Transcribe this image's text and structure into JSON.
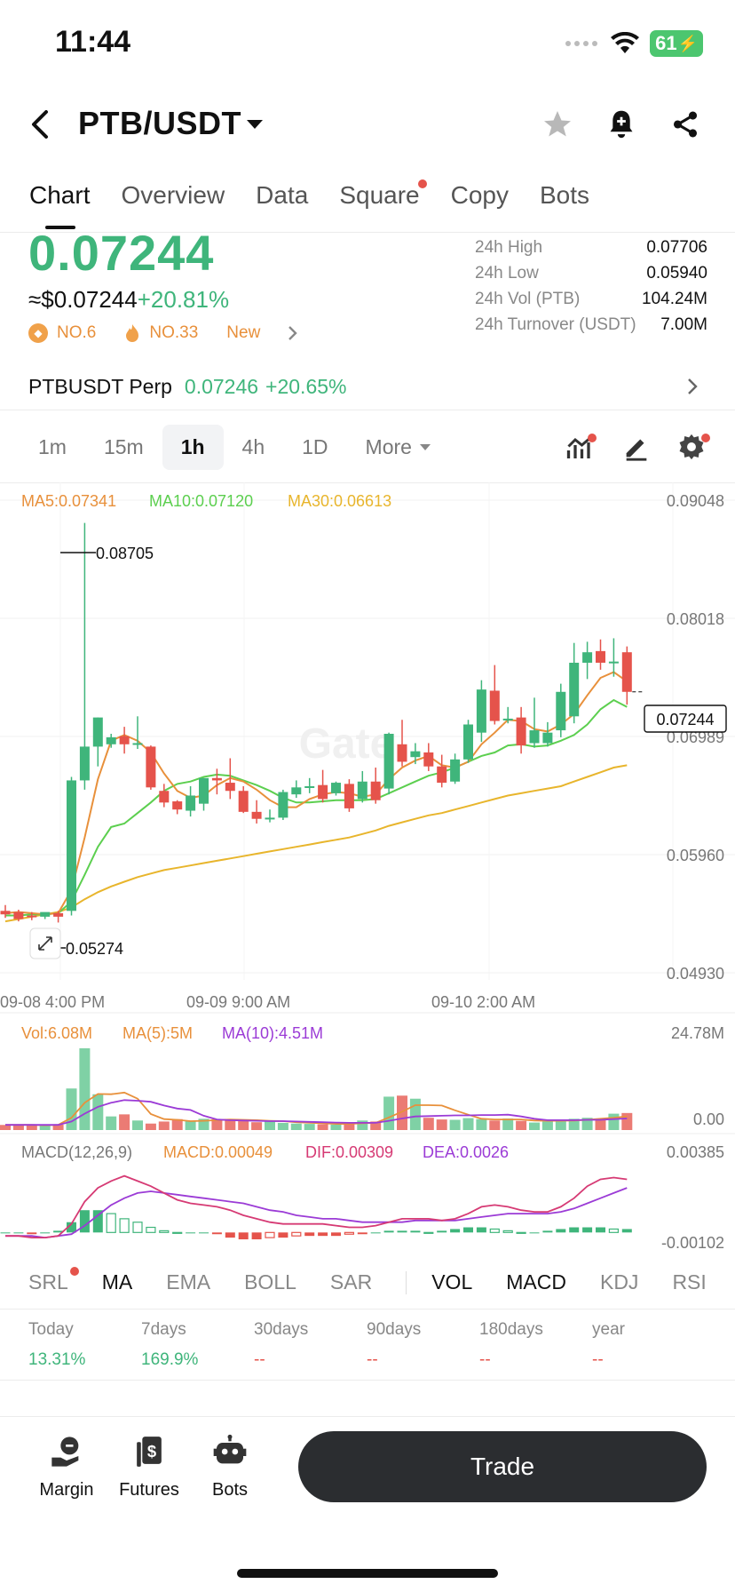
{
  "status_bar": {
    "time": "11:44",
    "battery": "61"
  },
  "header": {
    "pair": "PTB/USDT"
  },
  "tabs": [
    {
      "label": "Chart",
      "active": true
    },
    {
      "label": "Overview"
    },
    {
      "label": "Data"
    },
    {
      "label": "Square",
      "dot": true
    },
    {
      "label": "Copy"
    },
    {
      "label": "Bots"
    }
  ],
  "price": {
    "last": "0.07244",
    "usd": "≈$0.07244",
    "change": "+20.81%",
    "rank1": "NO.6",
    "rank2": "NO.33",
    "new_label": "New"
  },
  "stats": [
    {
      "label": "24h High",
      "value": "0.07706"
    },
    {
      "label": "24h Low",
      "value": "0.05940"
    },
    {
      "label": "24h Vol (PTB)",
      "value": "104.24M"
    },
    {
      "label": "24h Turnover (USDT)",
      "value": "7.00M"
    }
  ],
  "perp": {
    "name": "PTBUSDT Perp",
    "price": "0.07246",
    "change": "+20.65%"
  },
  "intervals": [
    "1m",
    "15m",
    "1h",
    "4h",
    "1D",
    "More"
  ],
  "active_interval": "1h",
  "colors": {
    "up": "#3fb57b",
    "down": "#e5534b",
    "ma5": "#e8903b",
    "ma10": "#5ccf4f",
    "ma30": "#e8b52c",
    "ma_vol10": "#9b3bd6",
    "dif": "#d63a74",
    "dea": "#9b3bd6"
  },
  "chart_data": {
    "type": "candlestick",
    "ma_legend": {
      "ma5": "MA5:0.07341",
      "ma10": "MA10:0.07120",
      "ma30": "MA30:0.06613"
    },
    "y_ticks": [
      "0.09048",
      "0.08018",
      "0.06989",
      "0.05960",
      "0.04930"
    ],
    "y_range": [
      0.0493,
      0.09048
    ],
    "x_ticks": [
      "09-08 4:00 PM",
      "09-09 9:00 AM",
      "09-10 2:00 AM"
    ],
    "high_label": "0.08705",
    "low_label": "0.05274",
    "last_price_label": "0.07244",
    "watermark": "Gate",
    "candles": [
      [
        0.0537,
        0.0542,
        0.0534,
        0.0531
      ],
      [
        0.0536,
        0.0538,
        0.053,
        0.0528
      ],
      [
        0.0533,
        0.0536,
        0.0532,
        0.0529
      ],
      [
        0.0532,
        0.0534,
        0.0536,
        0.053
      ],
      [
        0.0535,
        0.0537,
        0.0532,
        0.0527
      ],
      [
        0.0537,
        0.0652,
        0.0649,
        0.0533
      ],
      [
        0.0649,
        0.087,
        0.0678,
        0.0641
      ],
      [
        0.0678,
        0.0703,
        0.0703,
        0.0661
      ],
      [
        0.068,
        0.0689,
        0.0686,
        0.0677
      ],
      [
        0.0687,
        0.0695,
        0.068,
        0.0672
      ],
      [
        0.068,
        0.0704,
        0.0681,
        0.0676
      ],
      [
        0.0678,
        0.0679,
        0.0643,
        0.0641
      ],
      [
        0.064,
        0.0646,
        0.063,
        0.0626
      ],
      [
        0.0631,
        0.0632,
        0.0624,
        0.062
      ],
      [
        0.0623,
        0.0644,
        0.0636,
        0.0618
      ],
      [
        0.0629,
        0.0651,
        0.0651,
        0.0623
      ],
      [
        0.0651,
        0.0659,
        0.0649,
        0.0637
      ],
      [
        0.0647,
        0.0668,
        0.064,
        0.0633
      ],
      [
        0.064,
        0.0644,
        0.0622,
        0.0621
      ],
      [
        0.0622,
        0.0632,
        0.0616,
        0.0612
      ],
      [
        0.0616,
        0.0624,
        0.0617,
        0.0613
      ],
      [
        0.0617,
        0.0641,
        0.0639,
        0.0615
      ],
      [
        0.0637,
        0.0649,
        0.0643,
        0.0634
      ],
      [
        0.0643,
        0.0651,
        0.0644,
        0.0638
      ],
      [
        0.0645,
        0.0658,
        0.0633,
        0.063
      ],
      [
        0.0638,
        0.0648,
        0.0647,
        0.0636
      ],
      [
        0.0646,
        0.065,
        0.0625,
        0.0622
      ],
      [
        0.0633,
        0.0657,
        0.0648,
        0.063
      ],
      [
        0.0648,
        0.066,
        0.0632,
        0.0629
      ],
      [
        0.0642,
        0.069,
        0.0689,
        0.0637
      ],
      [
        0.068,
        0.0701,
        0.0665,
        0.0661
      ],
      [
        0.0669,
        0.0681,
        0.0674,
        0.0663
      ],
      [
        0.0673,
        0.0681,
        0.0661,
        0.0657
      ],
      [
        0.0661,
        0.0671,
        0.0647,
        0.0643
      ],
      [
        0.0648,
        0.0672,
        0.0667,
        0.0646
      ],
      [
        0.0667,
        0.0701,
        0.0697,
        0.0664
      ],
      [
        0.069,
        0.0735,
        0.0727,
        0.0682
      ],
      [
        0.0726,
        0.0748,
        0.07,
        0.0697
      ],
      [
        0.0702,
        0.0712,
        0.0702,
        0.0698
      ],
      [
        0.0703,
        0.0712,
        0.0679,
        0.0672
      ],
      [
        0.0681,
        0.072,
        0.0692,
        0.0677
      ],
      [
        0.0681,
        0.0699,
        0.069,
        0.0678
      ],
      [
        0.0692,
        0.0732,
        0.0725,
        0.0686
      ],
      [
        0.0704,
        0.0767,
        0.075,
        0.0698
      ],
      [
        0.075,
        0.0768,
        0.0759,
        0.0736
      ],
      [
        0.076,
        0.077,
        0.075,
        0.0744
      ],
      [
        0.075,
        0.0771,
        0.0751,
        0.0738
      ],
      [
        0.0759,
        0.0764,
        0.0725,
        0.0714
      ]
    ],
    "ma5": [
      0.0535,
      0.0536,
      0.0535,
      0.0534,
      0.0535,
      0.0555,
      0.06,
      0.065,
      0.0683,
      0.0688,
      0.0683,
      0.0673,
      0.0655,
      0.064,
      0.0634,
      0.0636,
      0.0645,
      0.0651,
      0.0648,
      0.0641,
      0.0632,
      0.0626,
      0.0626,
      0.0633,
      0.0637,
      0.0639,
      0.0638,
      0.0635,
      0.0637,
      0.065,
      0.066,
      0.0666,
      0.067,
      0.0662,
      0.066,
      0.0665,
      0.068,
      0.069,
      0.0701,
      0.07,
      0.0693,
      0.0691,
      0.0697,
      0.0706,
      0.0722,
      0.0737,
      0.0742,
      0.0734
    ],
    "ma10": [
      0.0533,
      0.0533,
      0.0534,
      0.0534,
      0.0535,
      0.0545,
      0.0568,
      0.0592,
      0.0609,
      0.0612,
      0.0621,
      0.063,
      0.064,
      0.0646,
      0.0648,
      0.0652,
      0.0654,
      0.0653,
      0.0649,
      0.0645,
      0.064,
      0.0634,
      0.063,
      0.063,
      0.0631,
      0.0632,
      0.0632,
      0.0632,
      0.0633,
      0.0638,
      0.0643,
      0.0648,
      0.0653,
      0.0656,
      0.066,
      0.0665,
      0.067,
      0.0673,
      0.0679,
      0.068,
      0.0678,
      0.0679,
      0.0683,
      0.0688,
      0.0697,
      0.071,
      0.0718,
      0.0712
    ],
    "ma30": [
      0.0528,
      0.053,
      0.0532,
      0.0534,
      0.0536,
      0.054,
      0.0547,
      0.0553,
      0.0558,
      0.0562,
      0.0566,
      0.0569,
      0.0572,
      0.0574,
      0.0576,
      0.0578,
      0.058,
      0.0582,
      0.0584,
      0.0586,
      0.0588,
      0.059,
      0.0592,
      0.0594,
      0.0596,
      0.0598,
      0.06,
      0.0603,
      0.0606,
      0.061,
      0.0613,
      0.0616,
      0.0619,
      0.0621,
      0.0624,
      0.0627,
      0.063,
      0.0633,
      0.0636,
      0.0638,
      0.064,
      0.0642,
      0.0644,
      0.0648,
      0.0652,
      0.0656,
      0.066,
      0.0662
    ],
    "volume": {
      "legend_vol": "Vol:6.08M",
      "legend_ma5": "MA(5):5M",
      "legend_ma10": "MA(10):4.51M",
      "y_ticks": [
        "24.78M",
        "0.00"
      ],
      "y_max": 24.78,
      "values": [
        1.5,
        1.5,
        1.4,
        1.3,
        1.6,
        12.2,
        24.0,
        10.5,
        4.0,
        4.6,
        2.8,
        1.9,
        2.5,
        3.2,
        2.6,
        3.3,
        3.2,
        3.0,
        2.6,
        2.3,
        2.6,
        2.1,
        1.9,
        1.8,
        1.7,
        1.6,
        1.9,
        2.8,
        2.5,
        9.8,
        10.1,
        9.2,
        3.6,
        3.1,
        3.0,
        3.5,
        3.2,
        2.8,
        3.4,
        2.7,
        2.2,
        2.5,
        3.0,
        3.3,
        3.6,
        3.4,
        4.8,
        5.0
      ],
      "ma5": [
        1.5,
        1.5,
        1.5,
        1.4,
        1.5,
        3.6,
        8.0,
        10.6,
        10.5,
        11.0,
        9.2,
        4.7,
        3.2,
        3.0,
        2.6,
        2.7,
        2.9,
        3.1,
        3.0,
        2.9,
        2.7,
        2.6,
        2.3,
        2.1,
        2.0,
        1.8,
        1.8,
        2.0,
        2.1,
        3.7,
        5.4,
        7.3,
        7.3,
        7.2,
        5.8,
        4.5,
        3.3,
        3.1,
        3.1,
        3.1,
        2.8,
        2.7,
        2.7,
        2.8,
        3.0,
        3.3,
        3.6,
        4.0
      ],
      "ma10": [
        1.5,
        1.5,
        1.5,
        1.5,
        1.5,
        2.5,
        4.8,
        6.8,
        8.0,
        8.8,
        8.6,
        8.3,
        7.2,
        6.3,
        5.9,
        4.2,
        3.1,
        2.9,
        2.8,
        2.7,
        2.6,
        2.6,
        2.5,
        2.4,
        2.3,
        2.2,
        2.1,
        2.1,
        2.1,
        2.7,
        3.4,
        4.0,
        4.1,
        4.2,
        4.3,
        4.3,
        4.4,
        4.4,
        4.5,
        4.0,
        3.3,
        2.9,
        2.9,
        2.9,
        3.0,
        3.0,
        3.2,
        3.4
      ]
    },
    "macd": {
      "legend_name": "MACD(12,26,9)",
      "legend_macd": "MACD:0.00049",
      "legend_dif": "DIF:0.00309",
      "legend_dea": "DEA:0.0026",
      "y_ticks": [
        "0.00385",
        "-0.00102"
      ],
      "y_range": [
        -0.00102,
        0.00385
      ],
      "hist": [
        0.0,
        0.0,
        -0.0001,
        0.0,
        0.0001,
        0.0006,
        0.0013,
        0.0013,
        0.0011,
        0.0008,
        0.0006,
        0.0003,
        0.0001,
        0.0,
        0.0,
        0.0,
        -0.0001,
        -0.0003,
        -0.0004,
        -0.0004,
        -0.0003,
        -0.0003,
        -0.0002,
        -0.0002,
        -0.0002,
        -0.0002,
        -0.0001,
        -0.0001,
        0.0,
        0.0001,
        0.0001,
        0.0001,
        0.0,
        0.0001,
        0.0002,
        0.0003,
        0.0003,
        0.0002,
        0.0001,
        0.0,
        0.0,
        0.0001,
        0.0002,
        0.0003,
        0.0003,
        0.0003,
        0.0002,
        0.0002
      ],
      "dif": [
        -0.0002,
        -0.0002,
        -0.0003,
        -0.0003,
        -0.0002,
        0.0005,
        0.0018,
        0.0026,
        0.003,
        0.0033,
        0.003,
        0.0027,
        0.0023,
        0.0019,
        0.0017,
        0.0016,
        0.0015,
        0.0013,
        0.001,
        0.0008,
        0.0006,
        0.0005,
        0.0005,
        0.0005,
        0.0005,
        0.0004,
        0.0003,
        0.0003,
        0.0004,
        0.0006,
        0.0008,
        0.0008,
        0.0008,
        0.0007,
        0.0008,
        0.0011,
        0.0015,
        0.0016,
        0.0015,
        0.0013,
        0.0012,
        0.0012,
        0.0015,
        0.002,
        0.0027,
        0.0031,
        0.0032,
        0.0031
      ],
      "dea": [
        -0.0002,
        -0.0002,
        -0.0002,
        -0.0003,
        -0.0002,
        -0.0001,
        0.0004,
        0.001,
        0.0016,
        0.002,
        0.0023,
        0.0024,
        0.0023,
        0.0022,
        0.0021,
        0.002,
        0.0019,
        0.0018,
        0.0017,
        0.0015,
        0.0013,
        0.0012,
        0.001,
        0.0009,
        0.0008,
        0.0008,
        0.0007,
        0.0006,
        0.0006,
        0.0006,
        0.0006,
        0.0007,
        0.0007,
        0.0007,
        0.0007,
        0.0008,
        0.0009,
        0.001,
        0.0011,
        0.0011,
        0.0011,
        0.0011,
        0.0012,
        0.0014,
        0.0017,
        0.002,
        0.0023,
        0.0026
      ]
    }
  },
  "indicators": [
    {
      "label": "SRL",
      "dot": true
    },
    {
      "label": "MA",
      "on": true
    },
    {
      "label": "EMA"
    },
    {
      "label": "BOLL"
    },
    {
      "label": "SAR"
    },
    {
      "label": "VOL",
      "on": true
    },
    {
      "label": "MACD",
      "on": true
    },
    {
      "label": "KDJ"
    },
    {
      "label": "RSI"
    }
  ],
  "performance": [
    {
      "label": "Today",
      "value": "13.31%",
      "color": "green"
    },
    {
      "label": "7days",
      "value": "169.9%",
      "color": "green"
    },
    {
      "label": "30days",
      "value": "--",
      "color": "red"
    },
    {
      "label": "90days",
      "value": "--",
      "color": "red"
    },
    {
      "label": "180days",
      "value": "--",
      "color": "red"
    },
    {
      "label": "year",
      "value": "--",
      "color": "red"
    }
  ],
  "bottom_bar": {
    "margin": "Margin",
    "futures": "Futures",
    "bots": "Bots",
    "trade": "Trade"
  }
}
